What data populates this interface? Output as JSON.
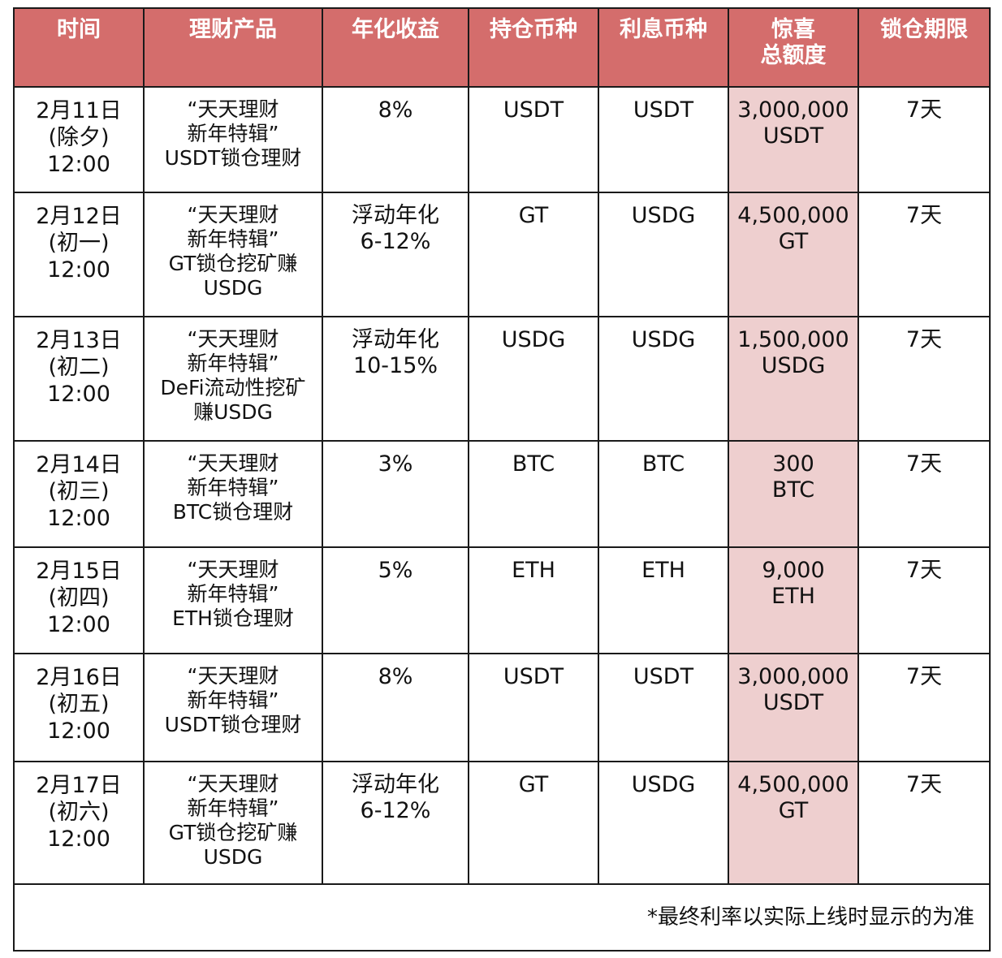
{
  "headers": [
    "时间",
    "理财产品",
    "年化收益",
    "持仓币种",
    "利息币种",
    "惊喜\n总额度",
    "锁仓期限"
  ],
  "rows": [
    {
      "date": [
        "2月11日",
        "(除夕)",
        "12:00"
      ],
      "product": [
        "“天天理财",
        "新年特辑”",
        "USDT锁仓理财"
      ],
      "apy": [
        "8%"
      ],
      "hold_coin": "USDT",
      "interest_coin": "USDT",
      "bonus": [
        "3,000,000",
        "USDT"
      ],
      "lock": "7天"
    },
    {
      "date": [
        "2月12日",
        "(初一)",
        "12:00"
      ],
      "product": [
        "“天天理财",
        "新年特辑”",
        "GT锁仓挖矿赚",
        "USDG"
      ],
      "apy": [
        "浮动年化",
        "6-12%"
      ],
      "hold_coin": "GT",
      "interest_coin": "USDG",
      "bonus": [
        "4,500,000",
        "GT"
      ],
      "lock": "7天"
    },
    {
      "date": [
        "2月13日",
        "(初二)",
        "12:00"
      ],
      "product": [
        "“天天理财",
        "新年特辑”",
        "DeFi流动性挖矿",
        "赚USDG"
      ],
      "apy": [
        "浮动年化",
        "10-15%"
      ],
      "hold_coin": "USDG",
      "interest_coin": "USDG",
      "bonus": [
        "1,500,000",
        "USDG"
      ],
      "lock": "7天"
    },
    {
      "date": [
        "2月14日",
        "(初三)",
        "12:00"
      ],
      "product": [
        "“天天理财",
        "新年特辑”",
        "BTC锁仓理财"
      ],
      "apy": [
        "3%"
      ],
      "hold_coin": "BTC",
      "interest_coin": "BTC",
      "bonus": [
        "300",
        "BTC"
      ],
      "lock": "7天"
    },
    {
      "date": [
        "2月15日",
        "(初四)",
        "12:00"
      ],
      "product": [
        "“天天理财",
        "新年特辑”",
        "ETH锁仓理财"
      ],
      "apy": [
        "5%"
      ],
      "hold_coin": "ETH",
      "interest_coin": "ETH",
      "bonus": [
        "9,000",
        "ETH"
      ],
      "lock": "7天"
    },
    {
      "date": [
        "2月16日",
        "(初五)",
        "12:00"
      ],
      "product": [
        "“天天理财",
        "新年特辑”",
        "USDT锁仓理财"
      ],
      "apy": [
        "8%"
      ],
      "hold_coin": "USDT",
      "interest_coin": "USDT",
      "bonus": [
        "3,000,000",
        "USDT"
      ],
      "lock": "7天"
    },
    {
      "date": [
        "2月17日",
        "(初六)",
        "12:00"
      ],
      "product": [
        "“天天理财",
        "新年特辑”",
        "GT锁仓挖矿赚",
        "USDG"
      ],
      "apy": [
        "浮动年化",
        "6-12%"
      ],
      "hold_coin": "GT",
      "interest_coin": "USDG",
      "bonus": [
        "4,500,000",
        "GT"
      ],
      "lock": "7天"
    }
  ],
  "footnote": "*最终利率以实际上线时显示的为准",
  "colors": {
    "header_bg": "#d46d6c",
    "header_text": "#ffffff",
    "bonus_bg": "#eecfcf",
    "border": "#1a1a1a"
  }
}
